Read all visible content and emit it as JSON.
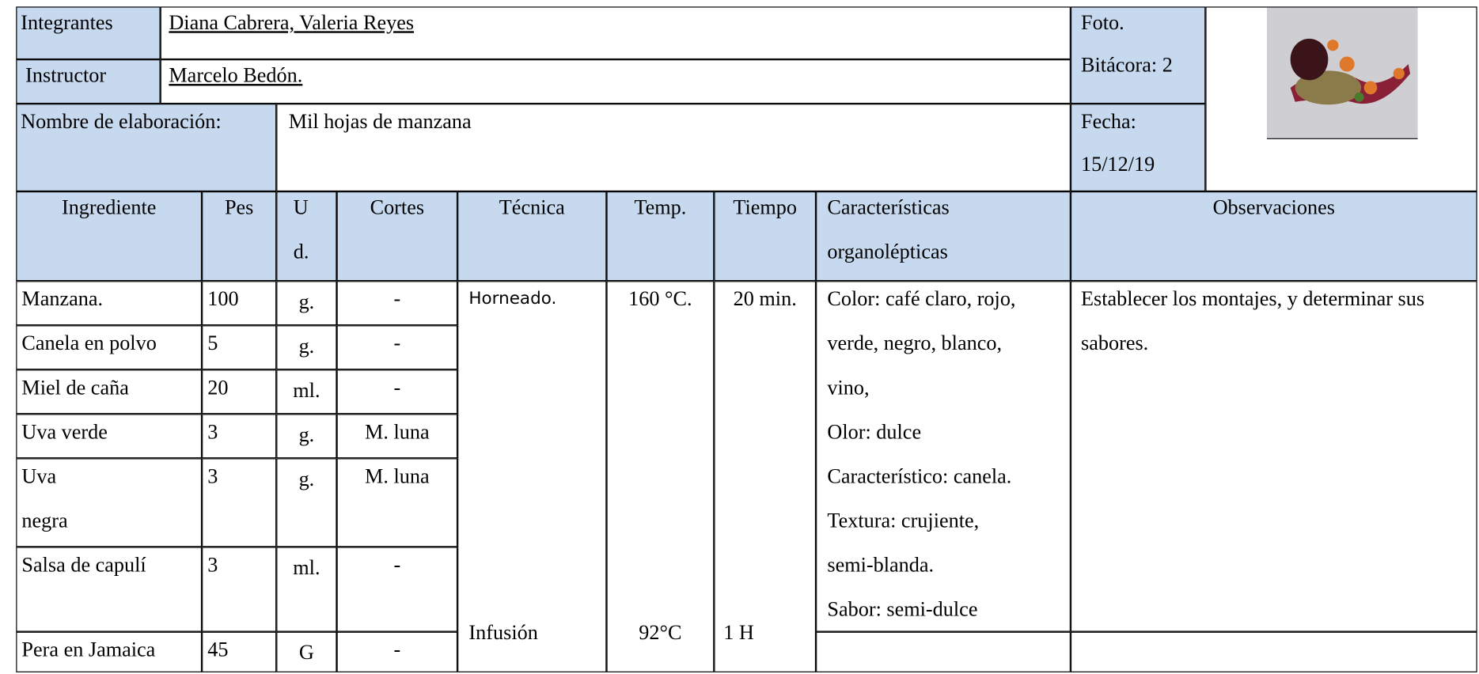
{
  "header": {
    "integrantes_label": "Integrantes",
    "integrantes": "Diana Cabrera, Valeria Reyes",
    "instructor_label": "Instructor",
    "instructor": "Marcelo Bedón.",
    "foto_label": "Foto.",
    "bitacora": "Bitácora: 2",
    "elaboracion_label": "Nombre de elaboración:",
    "elaboracion": "Mil hojas de manzana",
    "fecha_label": "Fecha:",
    "fecha": "15/12/19"
  },
  "table": {
    "columns": [
      "Ingrediente",
      "Pes",
      "Ud.",
      "Cortes",
      "Técnica",
      "Temp.",
      "Tiempo",
      "Características organolépticas",
      "Observaciones"
    ],
    "rows": [
      [
        "Manzana.",
        "100",
        "g.",
        "-"
      ],
      [
        "Canela en polvo",
        "5",
        "g.",
        "-"
      ],
      [
        "Miel de caña",
        "20",
        "ml.",
        "-"
      ],
      [
        "Uva verde",
        "3",
        "g.",
        "M. luna"
      ],
      [
        "Uva\nnegra",
        "3",
        "g.",
        "M. luna"
      ],
      [
        "Salsa de capulí",
        "3",
        "ml.",
        "-"
      ],
      [
        "Pera en Jamaica",
        "45",
        "G",
        "-"
      ]
    ],
    "tecnica": [
      "Horneado.",
      "Infusión"
    ],
    "temp": [
      "160 °C.",
      "92°C"
    ],
    "tiempo": [
      "20 min.",
      "1 H"
    ],
    "caracteristicas": [
      "Color: café claro, rojo,",
      "verde, negro, blanco,",
      "vino,",
      "Olor: dulce",
      "Característico: canela.",
      "Textura: crujiente,",
      "semi-blanda.",
      "Sabor: semi-dulce"
    ],
    "observaciones": "Establecer los montajes, y determinar sus sabores."
  }
}
